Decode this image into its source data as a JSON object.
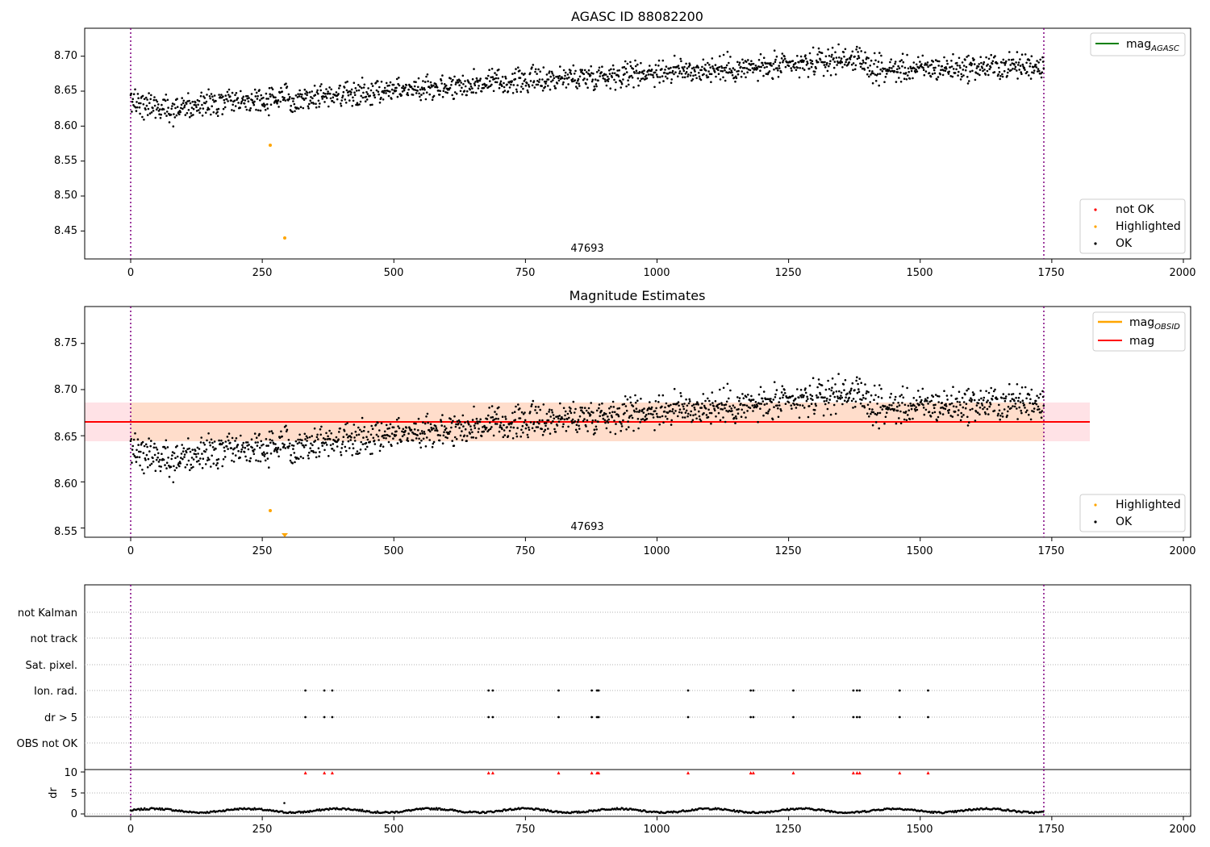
{
  "colors": {
    "ok": "#000000",
    "highlighted": "#ffa500",
    "not_ok": "#ff0000",
    "mag_agasc_line": "#008000",
    "mag_obsid_line": "#ffa500",
    "mag_line": "#ff0000",
    "band_outer": "#ffb6c1",
    "band_inner": "#ffdab9",
    "obs_boundary": "#800080",
    "grid": "#b0b0b0"
  },
  "chart_data": [
    {
      "type": "scatter",
      "title": "AGASC ID 88082200",
      "xlim": [
        -88,
        2013
      ],
      "ylim": [
        8.41,
        8.74
      ],
      "x_ticks": [
        "0",
        "250",
        "500",
        "750",
        "1000",
        "1250",
        "1500",
        "1750",
        "2000"
      ],
      "y_ticks": [
        "8.45",
        "8.50",
        "8.55",
        "8.60",
        "8.65",
        "8.70"
      ],
      "obs_boundaries": [
        0,
        1735
      ],
      "obsid_annotation": "47693",
      "legend_lines": [
        {
          "label": "mag",
          "subscript": "AGASC"
        }
      ],
      "legend_markers": [
        {
          "label": "not OK",
          "color_key": "not_ok"
        },
        {
          "label": "Highlighted",
          "color_key": "highlighted"
        },
        {
          "label": "OK",
          "color_key": "ok"
        }
      ],
      "ok_trend": {
        "x": [
          0,
          80,
          200,
          300,
          500,
          750,
          1000,
          1250,
          1370,
          1420,
          1735
        ],
        "y": [
          8.635,
          8.625,
          8.635,
          8.64,
          8.652,
          8.665,
          8.678,
          8.685,
          8.698,
          8.68,
          8.687
        ]
      },
      "highlighted": [
        {
          "x": 265,
          "y": 8.571
        },
        {
          "x": 294,
          "y": 8.438
        }
      ]
    },
    {
      "type": "scatter",
      "title": "Magnitude Estimates",
      "xlim": [
        -88,
        2013
      ],
      "ylim": [
        8.54,
        8.79
      ],
      "x_ticks": [
        "0",
        "250",
        "500",
        "750",
        "1000",
        "1250",
        "1500",
        "1750",
        "2000"
      ],
      "y_ticks": [
        "8.55",
        "8.60",
        "8.65",
        "8.70",
        "8.75"
      ],
      "obs_boundaries": [
        0,
        1735
      ],
      "obsid_annotation": "47693",
      "mag": 8.665,
      "mag_band": [
        8.645,
        8.686
      ],
      "band_x_range": [
        -88,
        1825
      ],
      "legend_lines": [
        {
          "label": "mag",
          "subscript": "OBSID"
        },
        {
          "label": "mag",
          "subscript": ""
        }
      ],
      "legend_markers": [
        {
          "label": "Highlighted",
          "color_key": "highlighted"
        },
        {
          "label": "OK",
          "color_key": "ok"
        }
      ],
      "highlighted": [
        {
          "x": 265,
          "y": 8.571
        }
      ],
      "clipped_marker": {
        "x": 294,
        "y": 8.545
      }
    },
    {
      "type": "scatter",
      "title": "",
      "xlim": [
        -88,
        2013
      ],
      "categories": [
        "not Kalman",
        "not track",
        "Sat. pixel.",
        "Ion. rad.",
        "dr > 5",
        "OBS not OK"
      ],
      "obs_boundaries": [
        0,
        1735
      ],
      "flag_events": {
        "Ion. rad.": [
          332,
          368,
          383,
          680,
          688,
          813,
          876,
          886,
          889,
          1059,
          1178,
          1183,
          1259,
          1373,
          1380,
          1385,
          1461,
          1515
        ],
        "dr > 5": [
          332,
          368,
          383,
          680,
          688,
          813,
          876,
          886,
          889,
          1059,
          1178,
          1183,
          1259,
          1373,
          1380,
          1385,
          1461,
          1515
        ]
      }
    },
    {
      "type": "scatter",
      "title": "",
      "ylabel": "dr",
      "xlim": [
        -88,
        2013
      ],
      "ylim": [
        -0.5,
        10.5
      ],
      "x_ticks": [
        "0",
        "250",
        "500",
        "750",
        "1000",
        "1250",
        "1500",
        "1750",
        "2000"
      ],
      "y_ticks": [
        "0",
        "5",
        "10"
      ],
      "obs_boundaries": [
        0,
        1735
      ],
      "clipped_x": [
        332,
        368,
        383,
        680,
        688,
        813,
        876,
        886,
        889,
        1059,
        1178,
        1183,
        1259,
        1373,
        1380,
        1385,
        1461,
        1515
      ],
      "dr_baseline": 0.8,
      "dr_outlier": {
        "x": 292,
        "y": 2.6
      }
    }
  ]
}
